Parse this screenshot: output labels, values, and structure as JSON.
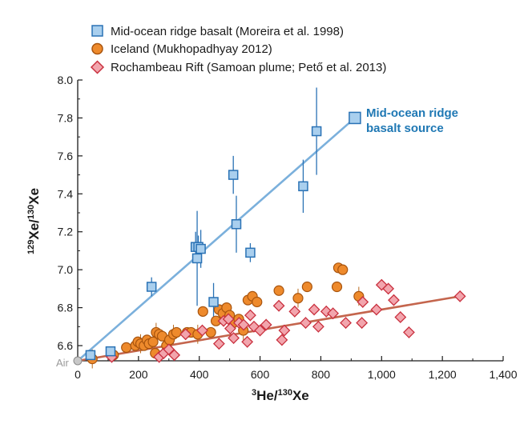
{
  "chart_data": {
    "type": "scatter",
    "xlabel": {
      "sup1": "3",
      "main1": "He/",
      "sup2": "130",
      "main2": "Xe"
    },
    "ylabel": {
      "sup1": "129",
      "main1": "Xe/",
      "sup2": "130",
      "main2": "Xe"
    },
    "xlim": [
      0,
      1400
    ],
    "ylim": [
      6.52,
      8.0
    ],
    "xticks": [
      0,
      200,
      400,
      600,
      800,
      1000,
      1200,
      1400
    ],
    "xtick_labels": [
      "0",
      "200",
      "400",
      "600",
      "800",
      "1,000",
      "1,200",
      "1,400"
    ],
    "yticks": [
      6.6,
      6.8,
      7.0,
      7.2,
      7.4,
      7.6,
      7.8,
      8.0
    ],
    "ytick_labels": [
      "6.6",
      "6.8",
      "7.0",
      "7.2",
      "7.4",
      "7.6",
      "7.8",
      "8.0"
    ],
    "air_label": "Air",
    "annotation": {
      "line1": "Mid-ocean ridge",
      "line2": "basalt source"
    },
    "legend_position": "top",
    "series": [
      {
        "name": "Mid-ocean ridge basalt (Moreira et al. 1998)",
        "marker": "square",
        "color": "#a9cfee",
        "stroke": "#2a72b5",
        "points": [
          {
            "x": 42,
            "y": 6.55,
            "e": 0.02
          },
          {
            "x": 108,
            "y": 6.57,
            "e": 0.02
          },
          {
            "x": 243,
            "y": 6.91,
            "e": 0.05
          },
          {
            "x": 388,
            "y": 7.12,
            "e": 0.08
          },
          {
            "x": 397,
            "y": 7.12,
            "e": 0.06
          },
          {
            "x": 393,
            "y": 7.06,
            "e": 0.25
          },
          {
            "x": 405,
            "y": 7.11,
            "e": 0.1
          },
          {
            "x": 447,
            "y": 6.83,
            "e": 0.1
          },
          {
            "x": 512,
            "y": 7.5,
            "e": 0.1
          },
          {
            "x": 522,
            "y": 7.24,
            "e": 0.15
          },
          {
            "x": 568,
            "y": 7.09,
            "e": 0.05
          },
          {
            "x": 742,
            "y": 7.44,
            "e": 0.14
          },
          {
            "x": 786,
            "y": 7.73,
            "e": 0.23
          }
        ]
      },
      {
        "name": "Iceland (Mukhopadhyay 2012)",
        "marker": "circle",
        "color": "#ee8a2c",
        "stroke": "#a8540e",
        "points": [
          {
            "x": 48,
            "y": 6.53
          },
          {
            "x": 118,
            "y": 6.55
          },
          {
            "x": 160,
            "y": 6.59
          },
          {
            "x": 190,
            "y": 6.6
          },
          {
            "x": 198,
            "y": 6.62
          },
          {
            "x": 207,
            "y": 6.61
          },
          {
            "x": 218,
            "y": 6.6
          },
          {
            "x": 228,
            "y": 6.63
          },
          {
            "x": 235,
            "y": 6.61
          },
          {
            "x": 248,
            "y": 6.62
          },
          {
            "x": 258,
            "y": 6.67
          },
          {
            "x": 268,
            "y": 6.66
          },
          {
            "x": 278,
            "y": 6.65
          },
          {
            "x": 292,
            "y": 6.6
          },
          {
            "x": 302,
            "y": 6.63
          },
          {
            "x": 315,
            "y": 6.66
          },
          {
            "x": 325,
            "y": 6.67
          },
          {
            "x": 255,
            "y": 6.56
          },
          {
            "x": 360,
            "y": 6.67
          },
          {
            "x": 373,
            "y": 6.67
          },
          {
            "x": 395,
            "y": 6.66
          },
          {
            "x": 412,
            "y": 6.78
          },
          {
            "x": 438,
            "y": 6.67
          },
          {
            "x": 455,
            "y": 6.73
          },
          {
            "x": 465,
            "y": 6.79
          },
          {
            "x": 478,
            "y": 6.77
          },
          {
            "x": 490,
            "y": 6.8
          },
          {
            "x": 500,
            "y": 6.76
          },
          {
            "x": 512,
            "y": 6.72
          },
          {
            "x": 530,
            "y": 6.74
          },
          {
            "x": 545,
            "y": 6.68
          },
          {
            "x": 560,
            "y": 6.84
          },
          {
            "x": 575,
            "y": 6.86
          },
          {
            "x": 590,
            "y": 6.83
          },
          {
            "x": 662,
            "y": 6.89
          },
          {
            "x": 725,
            "y": 6.85
          },
          {
            "x": 755,
            "y": 6.91
          },
          {
            "x": 853,
            "y": 6.91
          },
          {
            "x": 858,
            "y": 7.01
          },
          {
            "x": 872,
            "y": 7.0
          },
          {
            "x": 925,
            "y": 6.86
          }
        ]
      },
      {
        "name": "Rochambeau Rift (Samoan plume; Pető et al. 2013)",
        "marker": "diamond",
        "color": "#f2a5ad",
        "stroke": "#c9303e",
        "points": [
          {
            "x": 112,
            "y": 6.54
          },
          {
            "x": 268,
            "y": 6.54
          },
          {
            "x": 283,
            "y": 6.56
          },
          {
            "x": 300,
            "y": 6.58
          },
          {
            "x": 318,
            "y": 6.55
          },
          {
            "x": 355,
            "y": 6.66
          },
          {
            "x": 410,
            "y": 6.68
          },
          {
            "x": 465,
            "y": 6.61
          },
          {
            "x": 480,
            "y": 6.73
          },
          {
            "x": 496,
            "y": 6.74
          },
          {
            "x": 502,
            "y": 6.69
          },
          {
            "x": 513,
            "y": 6.64
          },
          {
            "x": 531,
            "y": 6.72
          },
          {
            "x": 546,
            "y": 6.71
          },
          {
            "x": 558,
            "y": 6.62
          },
          {
            "x": 568,
            "y": 6.76
          },
          {
            "x": 580,
            "y": 6.7
          },
          {
            "x": 600,
            "y": 6.68
          },
          {
            "x": 620,
            "y": 6.71
          },
          {
            "x": 662,
            "y": 6.81
          },
          {
            "x": 672,
            "y": 6.63
          },
          {
            "x": 680,
            "y": 6.68
          },
          {
            "x": 714,
            "y": 6.78
          },
          {
            "x": 750,
            "y": 6.72
          },
          {
            "x": 778,
            "y": 6.79
          },
          {
            "x": 792,
            "y": 6.7
          },
          {
            "x": 818,
            "y": 6.78
          },
          {
            "x": 840,
            "y": 6.77
          },
          {
            "x": 882,
            "y": 6.72
          },
          {
            "x": 938,
            "y": 6.83
          },
          {
            "x": 983,
            "y": 6.79
          },
          {
            "x": 1000,
            "y": 6.92
          },
          {
            "x": 1022,
            "y": 6.9
          },
          {
            "x": 1040,
            "y": 6.84
          },
          {
            "x": 1062,
            "y": 6.75
          },
          {
            "x": 1090,
            "y": 6.67
          },
          {
            "x": 935,
            "y": 6.72
          },
          {
            "x": 1258,
            "y": 6.86
          }
        ]
      }
    ],
    "trend_lines": [
      {
        "name": "Mid-ocean ridge basalt trend",
        "color": "#7bb0dc",
        "x1": 0,
        "y1": 6.52,
        "x2": 912,
        "y2": 7.8
      },
      {
        "name": "Rochambeau Rift trend",
        "color": "#c4654d",
        "x1": 0,
        "y1": 6.52,
        "x2": 1258,
        "y2": 6.86
      }
    ],
    "endpoint": {
      "x": 912,
      "y": 7.8
    }
  }
}
